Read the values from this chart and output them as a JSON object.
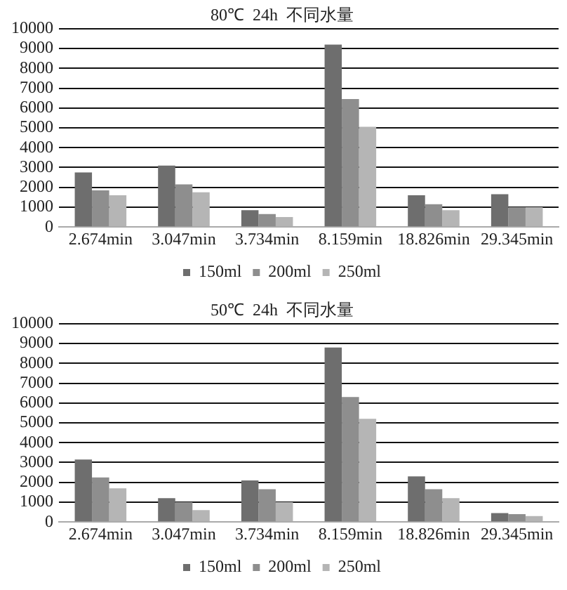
{
  "chart_data": [
    {
      "type": "bar",
      "title": "80℃  24h  不同水量",
      "categories": [
        "2.674min",
        "3.047min",
        "3.734min",
        "8.159min",
        "18.826min",
        "29.345min"
      ],
      "series": [
        {
          "name": "150ml",
          "color": "#6e6e6e",
          "values": [
            2750,
            3100,
            850,
            9200,
            1600,
            1650
          ]
        },
        {
          "name": "200ml",
          "color": "#8e8e8e",
          "values": [
            1850,
            2150,
            650,
            6450,
            1150,
            1000
          ]
        },
        {
          "name": "250ml",
          "color": "#b5b5b5",
          "values": [
            1600,
            1750,
            500,
            5050,
            850,
            1000
          ]
        }
      ],
      "ylim": [
        0,
        10000
      ],
      "yticks": [
        0,
        1000,
        2000,
        3000,
        4000,
        5000,
        6000,
        7000,
        8000,
        9000,
        10000
      ],
      "grid": "y",
      "legend": "bottom"
    },
    {
      "type": "bar",
      "title": "50℃  24h  不同水量",
      "categories": [
        "2.674min",
        "3.047min",
        "3.734min",
        "8.159min",
        "18.826min",
        "29.345min"
      ],
      "series": [
        {
          "name": "150ml",
          "color": "#6e6e6e",
          "values": [
            3150,
            1200,
            2100,
            8800,
            2300,
            450
          ]
        },
        {
          "name": "200ml",
          "color": "#8e8e8e",
          "values": [
            2250,
            1000,
            1650,
            6300,
            1650,
            400
          ]
        },
        {
          "name": "250ml",
          "color": "#b5b5b5",
          "values": [
            1700,
            600,
            1000,
            5200,
            1200,
            300
          ]
        }
      ],
      "ylim": [
        0,
        10000
      ],
      "yticks": [
        0,
        1000,
        2000,
        3000,
        4000,
        5000,
        6000,
        7000,
        8000,
        9000,
        10000
      ],
      "grid": "y",
      "legend": "bottom"
    }
  ]
}
